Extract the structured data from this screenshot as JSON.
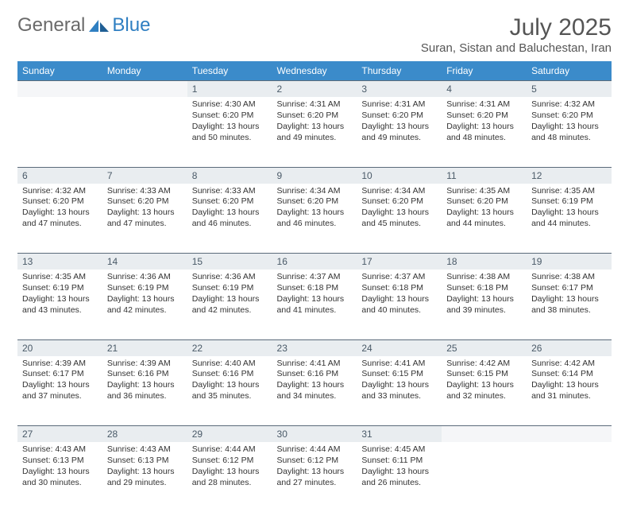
{
  "brand": {
    "name_a": "General",
    "name_b": "Blue"
  },
  "title": "July 2025",
  "location": "Suran, Sistan and Baluchestan, Iran",
  "colors": {
    "header_bg": "#3b8bca",
    "header_fg": "#ffffff",
    "daynum_bg": "#e9edf0",
    "daynum_fg": "#4a5a68",
    "border": "#5b6b7a",
    "text": "#333333",
    "brand_blue": "#2f7fc2",
    "brand_gray": "#6a6a6a"
  },
  "daysOfWeek": [
    "Sunday",
    "Monday",
    "Tuesday",
    "Wednesday",
    "Thursday",
    "Friday",
    "Saturday"
  ],
  "weeks": [
    [
      null,
      null,
      {
        "n": "1",
        "sunrise": "4:30 AM",
        "sunset": "6:20 PM",
        "daylight": "13 hours and 50 minutes."
      },
      {
        "n": "2",
        "sunrise": "4:31 AM",
        "sunset": "6:20 PM",
        "daylight": "13 hours and 49 minutes."
      },
      {
        "n": "3",
        "sunrise": "4:31 AM",
        "sunset": "6:20 PM",
        "daylight": "13 hours and 49 minutes."
      },
      {
        "n": "4",
        "sunrise": "4:31 AM",
        "sunset": "6:20 PM",
        "daylight": "13 hours and 48 minutes."
      },
      {
        "n": "5",
        "sunrise": "4:32 AM",
        "sunset": "6:20 PM",
        "daylight": "13 hours and 48 minutes."
      }
    ],
    [
      {
        "n": "6",
        "sunrise": "4:32 AM",
        "sunset": "6:20 PM",
        "daylight": "13 hours and 47 minutes."
      },
      {
        "n": "7",
        "sunrise": "4:33 AM",
        "sunset": "6:20 PM",
        "daylight": "13 hours and 47 minutes."
      },
      {
        "n": "8",
        "sunrise": "4:33 AM",
        "sunset": "6:20 PM",
        "daylight": "13 hours and 46 minutes."
      },
      {
        "n": "9",
        "sunrise": "4:34 AM",
        "sunset": "6:20 PM",
        "daylight": "13 hours and 46 minutes."
      },
      {
        "n": "10",
        "sunrise": "4:34 AM",
        "sunset": "6:20 PM",
        "daylight": "13 hours and 45 minutes."
      },
      {
        "n": "11",
        "sunrise": "4:35 AM",
        "sunset": "6:20 PM",
        "daylight": "13 hours and 44 minutes."
      },
      {
        "n": "12",
        "sunrise": "4:35 AM",
        "sunset": "6:19 PM",
        "daylight": "13 hours and 44 minutes."
      }
    ],
    [
      {
        "n": "13",
        "sunrise": "4:35 AM",
        "sunset": "6:19 PM",
        "daylight": "13 hours and 43 minutes."
      },
      {
        "n": "14",
        "sunrise": "4:36 AM",
        "sunset": "6:19 PM",
        "daylight": "13 hours and 42 minutes."
      },
      {
        "n": "15",
        "sunrise": "4:36 AM",
        "sunset": "6:19 PM",
        "daylight": "13 hours and 42 minutes."
      },
      {
        "n": "16",
        "sunrise": "4:37 AM",
        "sunset": "6:18 PM",
        "daylight": "13 hours and 41 minutes."
      },
      {
        "n": "17",
        "sunrise": "4:37 AM",
        "sunset": "6:18 PM",
        "daylight": "13 hours and 40 minutes."
      },
      {
        "n": "18",
        "sunrise": "4:38 AM",
        "sunset": "6:18 PM",
        "daylight": "13 hours and 39 minutes."
      },
      {
        "n": "19",
        "sunrise": "4:38 AM",
        "sunset": "6:17 PM",
        "daylight": "13 hours and 38 minutes."
      }
    ],
    [
      {
        "n": "20",
        "sunrise": "4:39 AM",
        "sunset": "6:17 PM",
        "daylight": "13 hours and 37 minutes."
      },
      {
        "n": "21",
        "sunrise": "4:39 AM",
        "sunset": "6:16 PM",
        "daylight": "13 hours and 36 minutes."
      },
      {
        "n": "22",
        "sunrise": "4:40 AM",
        "sunset": "6:16 PM",
        "daylight": "13 hours and 35 minutes."
      },
      {
        "n": "23",
        "sunrise": "4:41 AM",
        "sunset": "6:16 PM",
        "daylight": "13 hours and 34 minutes."
      },
      {
        "n": "24",
        "sunrise": "4:41 AM",
        "sunset": "6:15 PM",
        "daylight": "13 hours and 33 minutes."
      },
      {
        "n": "25",
        "sunrise": "4:42 AM",
        "sunset": "6:15 PM",
        "daylight": "13 hours and 32 minutes."
      },
      {
        "n": "26",
        "sunrise": "4:42 AM",
        "sunset": "6:14 PM",
        "daylight": "13 hours and 31 minutes."
      }
    ],
    [
      {
        "n": "27",
        "sunrise": "4:43 AM",
        "sunset": "6:13 PM",
        "daylight": "13 hours and 30 minutes."
      },
      {
        "n": "28",
        "sunrise": "4:43 AM",
        "sunset": "6:13 PM",
        "daylight": "13 hours and 29 minutes."
      },
      {
        "n": "29",
        "sunrise": "4:44 AM",
        "sunset": "6:12 PM",
        "daylight": "13 hours and 28 minutes."
      },
      {
        "n": "30",
        "sunrise": "4:44 AM",
        "sunset": "6:12 PM",
        "daylight": "13 hours and 27 minutes."
      },
      {
        "n": "31",
        "sunrise": "4:45 AM",
        "sunset": "6:11 PM",
        "daylight": "13 hours and 26 minutes."
      },
      null,
      null
    ]
  ],
  "labels": {
    "sunrise": "Sunrise:",
    "sunset": "Sunset:",
    "daylight": "Daylight:"
  }
}
